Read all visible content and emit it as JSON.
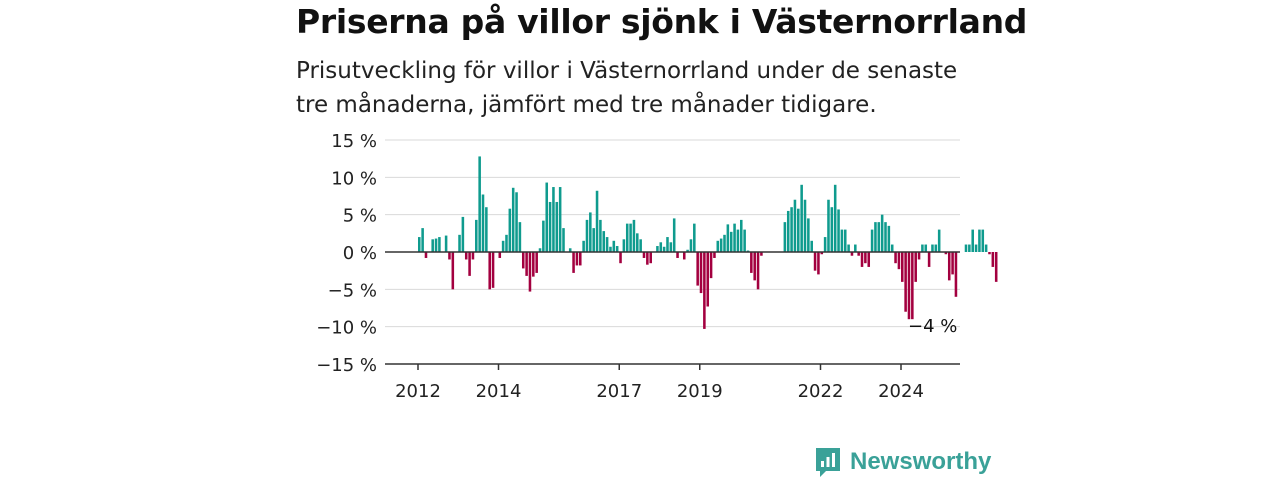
{
  "header": {
    "title": "Priserna på villor sjönk i Västernorrland",
    "subtitle": "Prisutveckling för villor i Västernorrland under de senaste tre månaderna, jämfört med tre månader tidigare."
  },
  "brand": {
    "name": "Newsworthy",
    "icon": "newsworthy-logo-icon",
    "color": "#3aa198"
  },
  "chart_data": {
    "type": "bar",
    "x_start": "2012-01",
    "x_end": "2025-06",
    "x_ticks": [
      {
        "label": "2012",
        "value": 2012
      },
      {
        "label": "2014",
        "value": 2014
      },
      {
        "label": "2017",
        "value": 2017
      },
      {
        "label": "2019",
        "value": 2019
      },
      {
        "label": "2022",
        "value": 2022
      },
      {
        "label": "2024",
        "value": 2024
      }
    ],
    "y_ticks": [
      {
        "label": "15 %",
        "value": 15
      },
      {
        "label": "10 %",
        "value": 10
      },
      {
        "label": "5 %",
        "value": 5
      },
      {
        "label": "0 %",
        "value": 0
      },
      {
        "label": "−5 %",
        "value": -5
      },
      {
        "label": "−10 %",
        "value": -10
      },
      {
        "label": "−15 %",
        "value": -15
      }
    ],
    "ylim": [
      -15,
      15
    ],
    "grid": true,
    "positive_color": "#0f9b8e",
    "negative_color": "#a3003f",
    "annotation": {
      "label": "−4 %",
      "value": -4
    },
    "values": [
      2,
      3.2,
      -0.8,
      0,
      1.7,
      1.8,
      2,
      0,
      2.2,
      -1,
      -5,
      0,
      2.3,
      4.7,
      -1,
      -3.2,
      -1,
      4.3,
      12.8,
      7.7,
      6,
      -5,
      -4.8,
      0,
      -0.8,
      1.5,
      2.3,
      5.8,
      8.6,
      8,
      4,
      -2.2,
      -3.2,
      -5.3,
      -3.3,
      -2.8,
      0.5,
      4.2,
      9.3,
      6.7,
      8.7,
      6.7,
      8.7,
      3.2,
      0,
      0.5,
      -2.8,
      -1.8,
      -1.8,
      1.5,
      4.3,
      5.3,
      3.2,
      8.2,
      4.3,
      2.8,
      2,
      0.7,
      1.5,
      0.8,
      -1.5,
      1.7,
      3.8,
      3.8,
      4.3,
      2.5,
      1.7,
      -0.8,
      -1.7,
      -1.5,
      0,
      0.8,
      1.3,
      0.7,
      2,
      1.3,
      4.5,
      -0.8,
      0,
      -1,
      0.3,
      1.7,
      3.8,
      -4.5,
      -5.5,
      -10.3,
      -7.3,
      -3.5,
      -0.8,
      1.5,
      1.8,
      2.3,
      3.7,
      2.7,
      3.8,
      3,
      4.3,
      3,
      0.2,
      -2.8,
      -3.8,
      -5,
      -0.5,
      0,
      0,
      0,
      0,
      0,
      0,
      4,
      5.5,
      6,
      7,
      5.8,
      9,
      7,
      4.5,
      1.5,
      -2.5,
      -3,
      -0.3,
      2,
      7,
      6,
      9,
      5.7,
      3,
      3,
      1,
      -0.5,
      1,
      -0.5,
      -2,
      -1.5,
      -2,
      3,
      4,
      4,
      5,
      4,
      3.5,
      1,
      -1.5,
      -2.3,
      -4,
      -8,
      -9,
      -9,
      -4,
      -1,
      1,
      1,
      -2,
      1,
      1,
      3,
      0,
      -0.3,
      -3.8,
      -3,
      -6,
      0,
      0,
      1,
      1,
      3,
      1,
      3,
      3,
      1,
      -0.3,
      -2,
      -4
    ]
  }
}
